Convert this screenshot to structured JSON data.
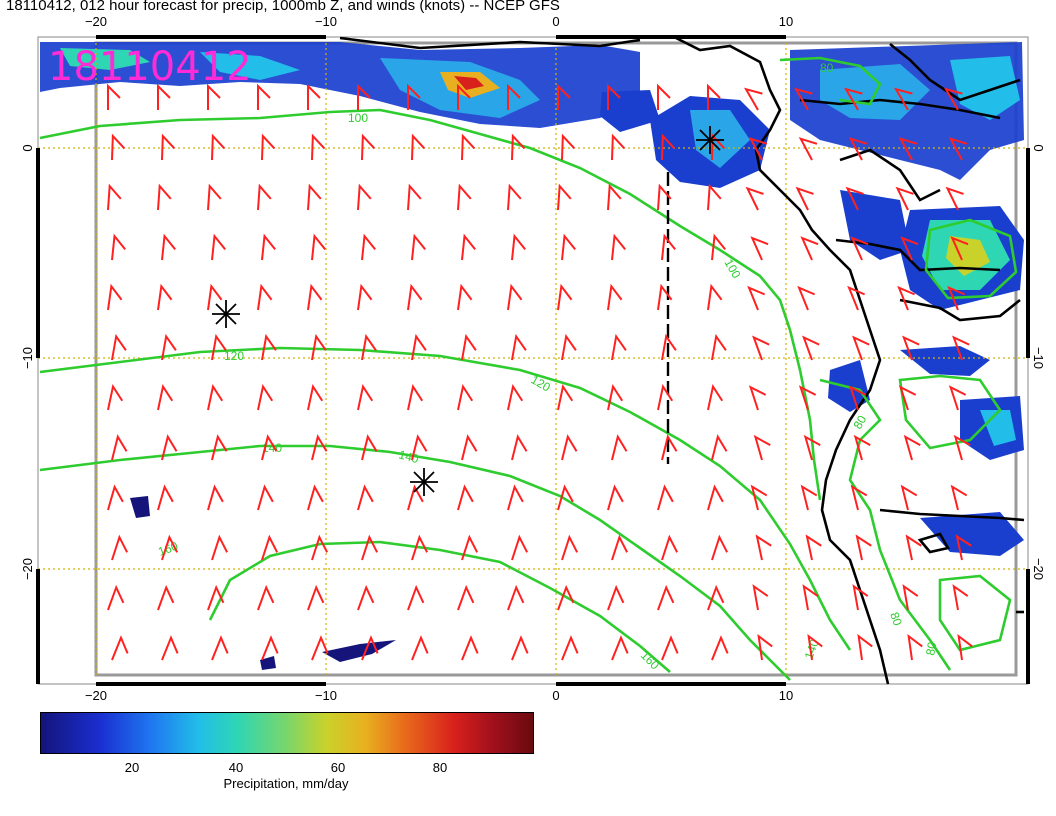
{
  "title": "18110412, 012 hour forecast for precip, 1000mb Z, and winds (knots) -- NCEP GFS",
  "stamp": "18110412",
  "lon_ticks_bottom": [
    "−20",
    "−10",
    "0",
    "10"
  ],
  "lon_ticks_top": [
    "−20",
    "−10",
    "0",
    "10"
  ],
  "lat_ticks_left": [
    "0",
    "−10",
    "−20"
  ],
  "lat_ticks_right": [
    "0",
    "−10",
    "−20"
  ],
  "contour_labels": {
    "c100a": "100",
    "c100b": "100",
    "c120a": "120",
    "c120b": "120",
    "c140a": "140",
    "c140b": "140",
    "c140c": "140",
    "c160a": "160",
    "c160b": "160",
    "c80a": "80",
    "c80b": "80",
    "c80c": "80",
    "c80d": "80"
  },
  "colorbar": {
    "labels": [
      "20",
      "40",
      "60",
      "80"
    ],
    "title": "Precipitation, mm/day"
  },
  "colors": {
    "contour": "#2ecc2e",
    "barb": "#ff2020",
    "stamp": "#ff2bd6",
    "grid": "#d4b400",
    "coast": "#000000"
  },
  "markers": [
    "star-marker",
    "star-marker",
    "star-marker"
  ]
}
